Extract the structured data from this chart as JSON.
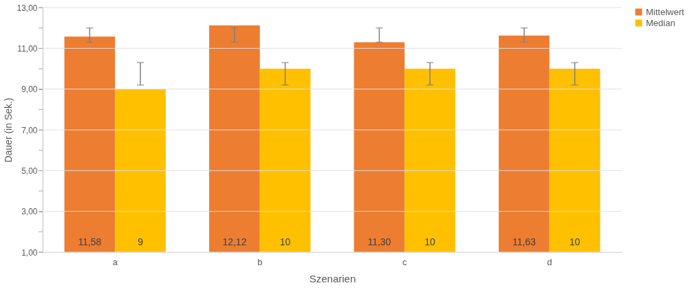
{
  "chart_data": {
    "type": "bar",
    "xlabel": "Szenarien",
    "ylabel": "Dauer (in Sek.)",
    "categories": [
      "a",
      "b",
      "c",
      "d"
    ],
    "series": [
      {
        "name": "Mittelwert",
        "color": "#ed7d31",
        "values": [
          11.58,
          12.12,
          11.3,
          11.63
        ],
        "value_labels": [
          "11,58",
          "12,12",
          "11,30",
          "11,63"
        ],
        "errors": [
          [
            11.3,
            12.0
          ],
          [
            11.3,
            12.0
          ],
          [
            11.3,
            12.0
          ],
          [
            11.3,
            12.0
          ]
        ]
      },
      {
        "name": "Median",
        "color": "#ffc000",
        "values": [
          9,
          10,
          10,
          10
        ],
        "value_labels": [
          "9",
          "10",
          "10",
          "10"
        ],
        "errors": [
          [
            9.2,
            10.3
          ],
          [
            9.2,
            10.3
          ],
          [
            9.2,
            10.3
          ],
          [
            9.2,
            10.3
          ]
        ]
      }
    ],
    "ylim": [
      1,
      13
    ],
    "yticks": [
      {
        "value": 1,
        "label": "1,00"
      },
      {
        "value": 2,
        "label": null
      },
      {
        "value": 3,
        "label": "3,00"
      },
      {
        "value": 4,
        "label": null
      },
      {
        "value": 5,
        "label": "5,00"
      },
      {
        "value": 6,
        "label": null
      },
      {
        "value": 7,
        "label": "7,00"
      },
      {
        "value": 8,
        "label": null
      },
      {
        "value": 9,
        "label": "9,00"
      },
      {
        "value": 10,
        "label": null
      },
      {
        "value": 11,
        "label": "11,00"
      },
      {
        "value": 12,
        "label": null
      },
      {
        "value": 13,
        "label": "13,00"
      }
    ],
    "grid": "y",
    "legend": "right"
  }
}
